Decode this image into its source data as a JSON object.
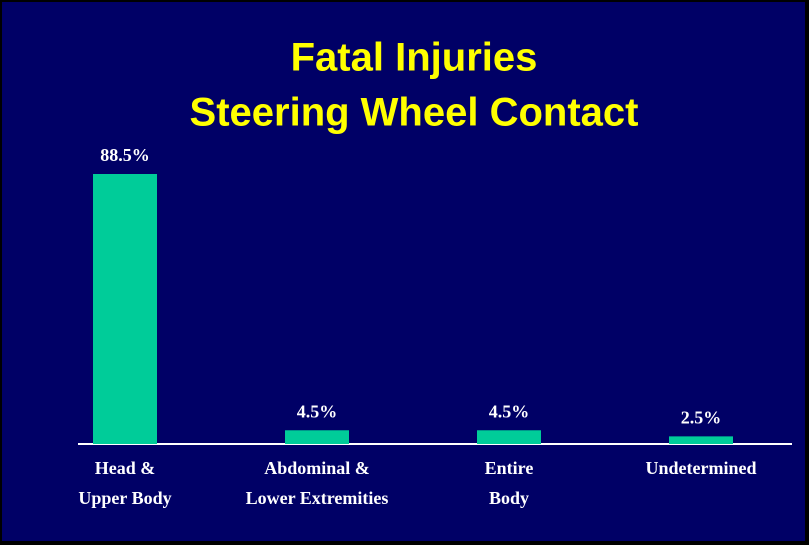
{
  "chart_data": {
    "type": "bar",
    "title": [
      "Fatal Injuries",
      "Steering Wheel Contact"
    ],
    "categories": [
      [
        "Head &",
        "Upper Body"
      ],
      [
        "Abdominal &",
        "Lower Extremities"
      ],
      [
        "Entire",
        "Body"
      ],
      [
        "Undetermined"
      ]
    ],
    "values": [
      88.5,
      4.5,
      4.5,
      2.5
    ],
    "value_labels": [
      "88.5%",
      "4.5%",
      "4.5%",
      "2.5%"
    ],
    "color": "#00cc99"
  }
}
